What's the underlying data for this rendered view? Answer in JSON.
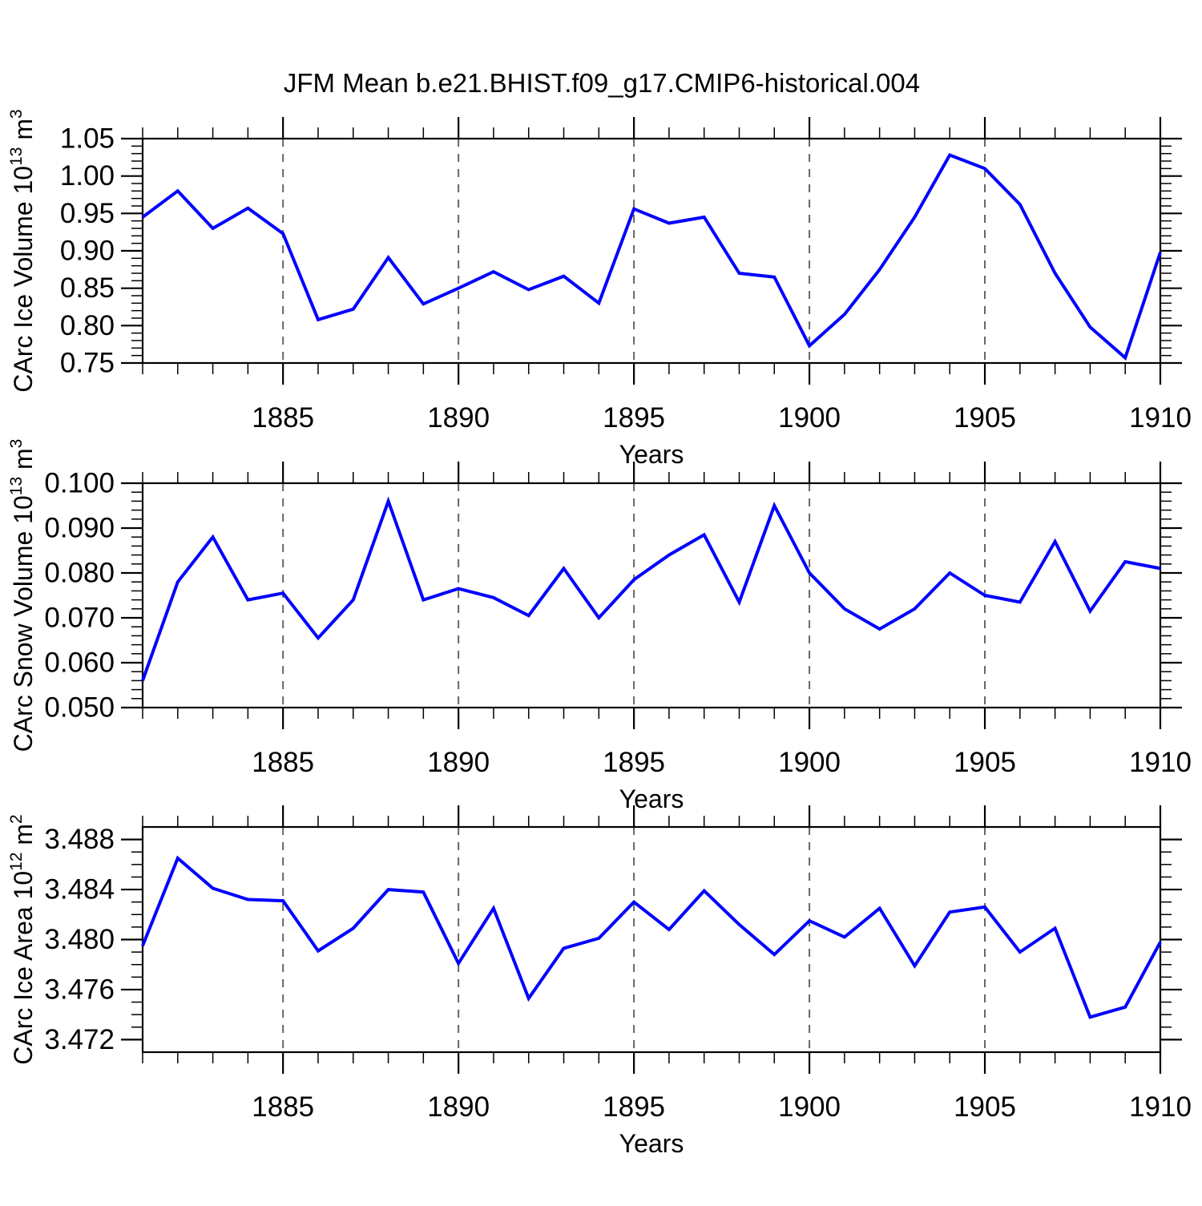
{
  "figure_title": "JFM Mean b.e21.BHIST.f09_g17.CMIP6-historical.004",
  "colors": {
    "line": "#0000ff",
    "grid": "#666666",
    "axis": "#000000",
    "text": "#000000",
    "background": "#ffffff"
  },
  "chart_data": [
    {
      "type": "line",
      "name": "carc-ice-volume",
      "title": "",
      "xlabel": "Years",
      "ylabel": "CArc Ice Volume 10^13 m^3",
      "ylabel_segments": [
        [
          "CArc Ice Volume 10",
          false
        ],
        [
          "13",
          true
        ],
        [
          " m",
          false
        ],
        [
          "3",
          true
        ]
      ],
      "x": [
        1881,
        1882,
        1883,
        1884,
        1885,
        1886,
        1887,
        1888,
        1889,
        1890,
        1891,
        1892,
        1893,
        1894,
        1895,
        1896,
        1897,
        1898,
        1899,
        1900,
        1901,
        1902,
        1903,
        1904,
        1905,
        1906,
        1907,
        1908,
        1909,
        1910
      ],
      "values": [
        0.945,
        0.98,
        0.93,
        0.957,
        0.923,
        0.808,
        0.822,
        0.891,
        0.829,
        0.85,
        0.872,
        0.848,
        0.866,
        0.83,
        0.956,
        0.937,
        0.945,
        0.87,
        0.865,
        0.773,
        0.815,
        0.875,
        0.945,
        1.028,
        1.01,
        0.962,
        0.87,
        0.798,
        0.757,
        0.898
      ],
      "xlim": [
        1881,
        1910
      ],
      "ylim": [
        0.75,
        1.05
      ],
      "xticks": [
        1885,
        1890,
        1895,
        1900,
        1905,
        1910
      ],
      "xtick_labels": [
        "1885",
        "1890",
        "1895",
        "1900",
        "1905",
        "1910"
      ],
      "x_minor_step": 1,
      "grid_x": [
        1885,
        1890,
        1895,
        1900,
        1905
      ],
      "yticks": [
        1.05,
        1.0,
        0.95,
        0.9,
        0.85,
        0.8,
        0.75
      ],
      "ytick_labels": [
        "1.05",
        "1.00",
        "0.95",
        "0.90",
        "0.85",
        "0.80",
        "0.75"
      ],
      "y_minor_step": 0.01,
      "grid": "vertical-dashed",
      "legend": "none"
    },
    {
      "type": "line",
      "name": "carc-snow-volume",
      "title": "",
      "xlabel": "Years",
      "ylabel": "CArc Snow Volume 10^13 m^3",
      "ylabel_segments": [
        [
          "CArc Snow Volume 10",
          false
        ],
        [
          "13",
          true
        ],
        [
          " m",
          false
        ],
        [
          "3",
          true
        ]
      ],
      "x": [
        1881,
        1882,
        1883,
        1884,
        1885,
        1886,
        1887,
        1888,
        1889,
        1890,
        1891,
        1892,
        1893,
        1894,
        1895,
        1896,
        1897,
        1898,
        1899,
        1900,
        1901,
        1902,
        1903,
        1904,
        1905,
        1906,
        1907,
        1908,
        1909,
        1910
      ],
      "values": [
        0.056,
        0.078,
        0.088,
        0.074,
        0.0755,
        0.0655,
        0.074,
        0.096,
        0.074,
        0.0765,
        0.0745,
        0.0705,
        0.081,
        0.07,
        0.0785,
        0.084,
        0.0885,
        0.0735,
        0.095,
        0.08,
        0.072,
        0.0675,
        0.072,
        0.08,
        0.075,
        0.0735,
        0.087,
        0.0715,
        0.0825,
        0.081
      ],
      "xlim": [
        1881,
        1910
      ],
      "ylim": [
        0.05,
        0.1
      ],
      "xticks": [
        1885,
        1890,
        1895,
        1900,
        1905,
        1910
      ],
      "xtick_labels": [
        "1885",
        "1890",
        "1895",
        "1900",
        "1905",
        "1910"
      ],
      "x_minor_step": 1,
      "grid_x": [
        1885,
        1890,
        1895,
        1900,
        1905
      ],
      "yticks": [
        0.1,
        0.09,
        0.08,
        0.07,
        0.06,
        0.05
      ],
      "ytick_labels": [
        "0.100",
        "0.090",
        "0.080",
        "0.070",
        "0.060",
        "0.050"
      ],
      "y_minor_step": 0.002,
      "grid": "vertical-dashed",
      "legend": "none"
    },
    {
      "type": "line",
      "name": "carc-ice-area",
      "title": "",
      "xlabel": "Years",
      "ylabel": "CArc Ice Area 10^12 m^2",
      "ylabel_segments": [
        [
          "CArc Ice Area 10",
          false
        ],
        [
          "12",
          true
        ],
        [
          " m",
          false
        ],
        [
          "2",
          true
        ]
      ],
      "x": [
        1881,
        1882,
        1883,
        1884,
        1885,
        1886,
        1887,
        1888,
        1889,
        1890,
        1891,
        1892,
        1893,
        1894,
        1895,
        1896,
        1897,
        1898,
        1899,
        1900,
        1901,
        1902,
        1903,
        1904,
        1905,
        1906,
        1907,
        1908,
        1909,
        1910
      ],
      "values": [
        3.4795,
        3.4865,
        3.4841,
        3.4832,
        3.4831,
        3.4791,
        3.4809,
        3.484,
        3.4838,
        3.4781,
        3.4825,
        3.4753,
        3.4793,
        3.4801,
        3.483,
        3.4808,
        3.4839,
        3.4812,
        3.4788,
        3.4815,
        3.4802,
        3.4825,
        3.4779,
        3.4822,
        3.4826,
        3.479,
        3.4809,
        3.4738,
        3.4746,
        3.4798
      ],
      "xlim": [
        1881,
        1910
      ],
      "ylim": [
        3.471,
        3.489
      ],
      "xticks": [
        1885,
        1890,
        1895,
        1900,
        1905,
        1910
      ],
      "xtick_labels": [
        "1885",
        "1890",
        "1895",
        "1900",
        "1905",
        "1910"
      ],
      "x_minor_step": 1,
      "grid_x": [
        1885,
        1890,
        1895,
        1900,
        1905
      ],
      "yticks": [
        3.488,
        3.484,
        3.48,
        3.476,
        3.472
      ],
      "ytick_labels": [
        "3.488",
        "3.484",
        "3.480",
        "3.476",
        "3.472"
      ],
      "y_minor_step": 0.001,
      "grid": "vertical-dashed",
      "legend": "none"
    }
  ]
}
